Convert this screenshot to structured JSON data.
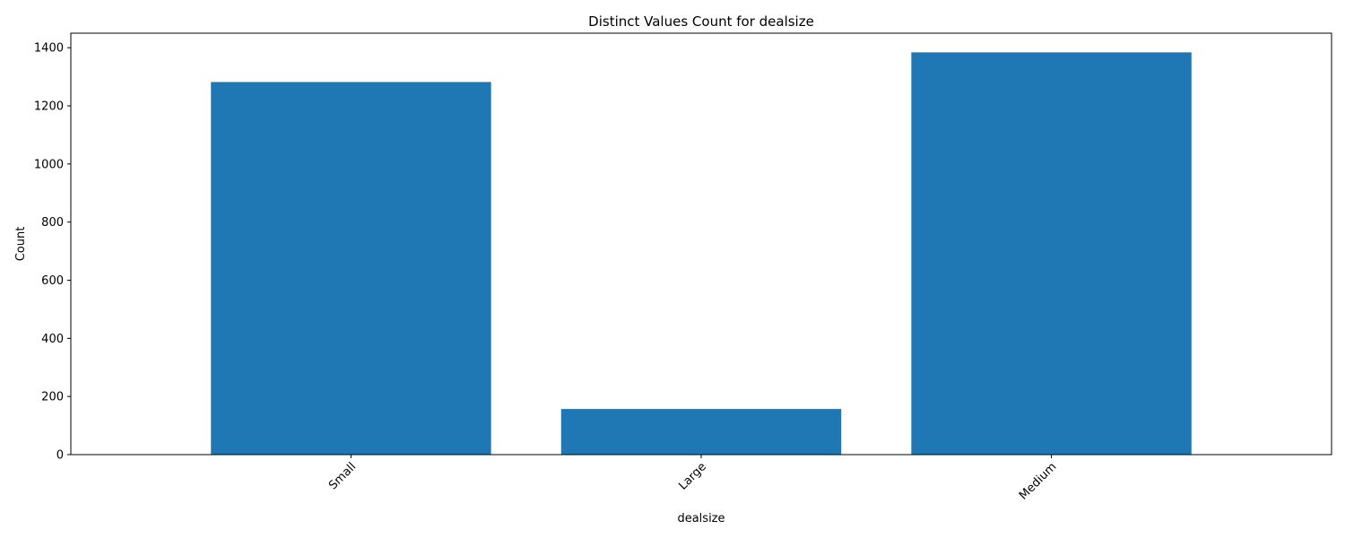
{
  "chart_data": {
    "type": "bar",
    "title": "Distinct Values Count for dealsize",
    "xlabel": "dealsize",
    "ylabel": "Count",
    "categories": [
      "Small",
      "Large",
      "Medium"
    ],
    "values": [
      1282,
      157,
      1384
    ],
    "ylim": [
      0,
      1450
    ],
    "yticks": [
      0,
      200,
      400,
      600,
      800,
      1000,
      1200,
      1400
    ],
    "bar_color": "#1f77b4",
    "grid": false,
    "x_tick_rotation_deg": 45
  }
}
